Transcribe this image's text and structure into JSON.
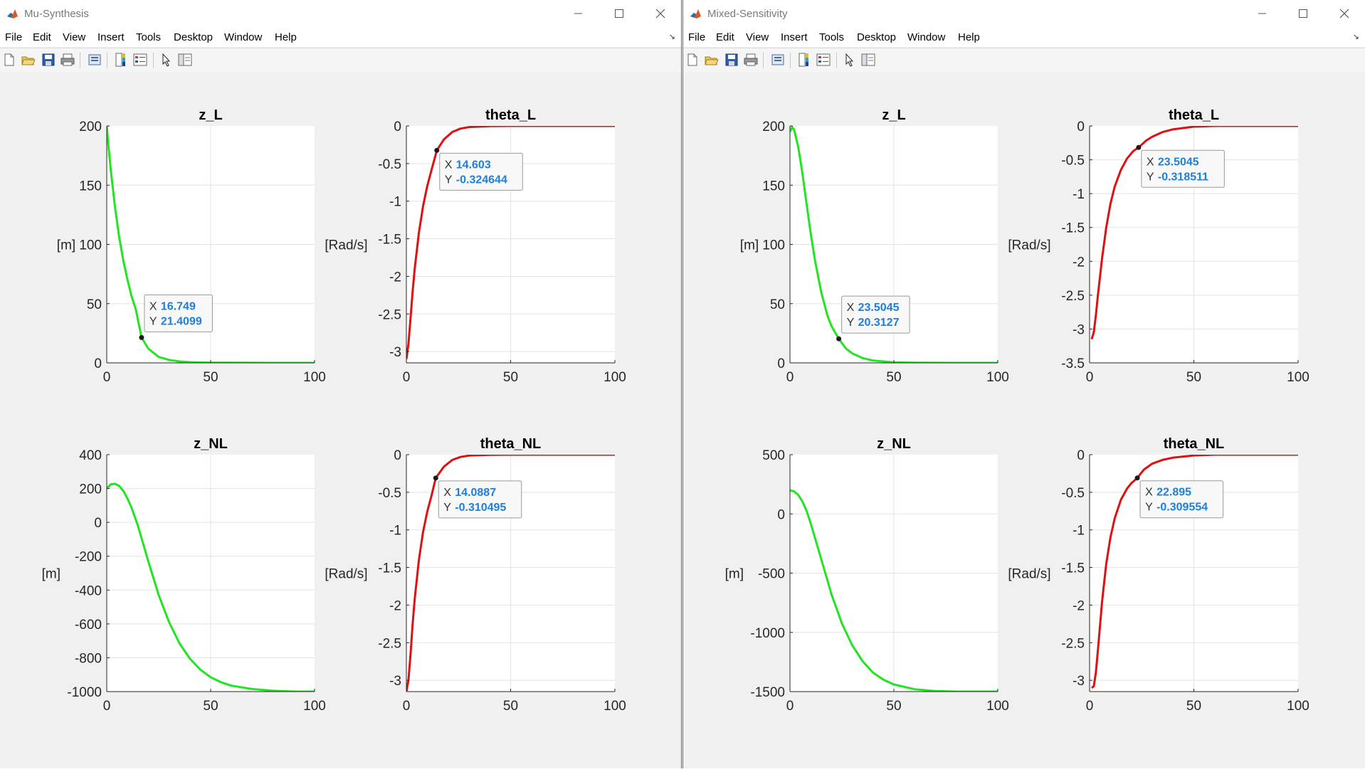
{
  "menu_items": [
    "File",
    "Edit",
    "View",
    "Insert",
    "Tools",
    "Desktop",
    "Window",
    "Help"
  ],
  "colors": {
    "green_line": "#22e522",
    "red_line": "#e01010",
    "datatip_value": "#1e7fd8",
    "figure_bg": "#f0f0f0"
  },
  "icons": [
    "new-figure-icon",
    "open-file-icon",
    "save-icon",
    "print-icon",
    "print-preview-icon",
    "colorbar-icon",
    "legend-icon",
    "pointer-icon",
    "property-editor-icon"
  ],
  "windows": [
    {
      "title": "Mu-Synthesis",
      "plots": [
        {
          "title": "z_L",
          "ylabel": "[m]",
          "datatip": {
            "x_label": "X",
            "x": "16.749",
            "y_label": "Y",
            "y": "21.4099"
          }
        },
        {
          "title": "theta_L",
          "ylabel": "[Rad/s]",
          "datatip": {
            "x_label": "X",
            "x": "14.603",
            "y_label": "Y",
            "y": "-0.324644"
          }
        },
        {
          "title": "z_NL",
          "ylabel": "[m]",
          "datatip": null
        },
        {
          "title": "theta_NL",
          "ylabel": "[Rad/s]",
          "datatip": {
            "x_label": "X",
            "x": "14.0887",
            "y_label": "Y",
            "y": "-0.310495"
          }
        }
      ]
    },
    {
      "title": "Mixed-Sensitivity",
      "plots": [
        {
          "title": "z_L",
          "ylabel": "[m]",
          "datatip": {
            "x_label": "X",
            "x": "23.5045",
            "y_label": "Y",
            "y": "20.3127"
          }
        },
        {
          "title": "theta_L",
          "ylabel": "[Rad/s]",
          "datatip": {
            "x_label": "X",
            "x": "23.5045",
            "y_label": "Y",
            "y": "-0.318511"
          }
        },
        {
          "title": "z_NL",
          "ylabel": "[m]",
          "datatip": null
        },
        {
          "title": "theta_NL",
          "ylabel": "[Rad/s]",
          "datatip": {
            "x_label": "X",
            "x": "22.895",
            "y_label": "Y",
            "y": "-0.309554"
          }
        }
      ]
    }
  ],
  "chart_data": [
    {
      "figure": "Mu-Synthesis",
      "title": "z_L",
      "type": "line",
      "xlabel": "",
      "ylabel": "[m]",
      "xlim": [
        0,
        100
      ],
      "ylim": [
        0,
        200
      ],
      "xticks": [
        0,
        50,
        100
      ],
      "yticks": [
        0,
        50,
        100,
        150,
        200
      ],
      "grid": true,
      "color": "#22e522",
      "series": [
        {
          "x": [
            0,
            1,
            2,
            4,
            6,
            8,
            10,
            12,
            14,
            16.749,
            20,
            25,
            30,
            35,
            40,
            50,
            60,
            80,
            100
          ],
          "y": [
            200,
            180,
            162,
            131,
            106,
            86,
            70,
            56,
            45,
            21.4099,
            12,
            5,
            2.5,
            1.2,
            0.6,
            0.2,
            0.1,
            0.02,
            0
          ]
        }
      ],
      "datatip": {
        "x": 16.749,
        "y": 21.4099
      }
    },
    {
      "figure": "Mu-Synthesis",
      "title": "theta_L",
      "type": "line",
      "xlabel": "",
      "ylabel": "[Rad/s]",
      "xlim": [
        0,
        100
      ],
      "ylim": [
        -3.15,
        0
      ],
      "xticks": [
        0,
        50,
        100
      ],
      "yticks": [
        0,
        -0.5,
        -1,
        -1.5,
        -2,
        -2.5,
        -3
      ],
      "grid": true,
      "color": "#e01010",
      "series": [
        {
          "x": [
            0,
            1,
            2,
            3,
            4,
            6,
            8,
            10,
            12,
            14.603,
            18,
            22,
            26,
            30,
            40,
            50,
            60,
            80,
            100
          ],
          "y": [
            -3.1,
            -2.9,
            -2.55,
            -2.2,
            -1.9,
            -1.42,
            -1.07,
            -0.8,
            -0.59,
            -0.324644,
            -0.18,
            -0.08,
            -0.035,
            -0.015,
            -0.003,
            0,
            0,
            0,
            0
          ]
        }
      ],
      "datatip": {
        "x": 14.603,
        "y": -0.324644
      }
    },
    {
      "figure": "Mu-Synthesis",
      "title": "z_NL",
      "type": "line",
      "xlabel": "",
      "ylabel": "[m]",
      "xlim": [
        0,
        100
      ],
      "ylim": [
        -1000,
        400
      ],
      "xticks": [
        0,
        50,
        100
      ],
      "yticks": [
        400,
        200,
        0,
        -200,
        -400,
        -600,
        -800,
        -1000
      ],
      "grid": true,
      "color": "#22e522",
      "series": [
        {
          "x": [
            0,
            2,
            4,
            6,
            8,
            10,
            12,
            15,
            20,
            25,
            30,
            35,
            40,
            45,
            50,
            55,
            60,
            70,
            80,
            90,
            100
          ],
          "y": [
            200,
            225,
            228,
            215,
            185,
            140,
            85,
            -20,
            -230,
            -430,
            -590,
            -715,
            -805,
            -870,
            -915,
            -945,
            -965,
            -985,
            -995,
            -1000,
            -1000
          ]
        }
      ],
      "datatip": null
    },
    {
      "figure": "Mu-Synthesis",
      "title": "theta_NL",
      "type": "line",
      "xlabel": "",
      "ylabel": "[Rad/s]",
      "xlim": [
        0,
        100
      ],
      "ylim": [
        -3.15,
        0
      ],
      "xticks": [
        0,
        50,
        100
      ],
      "yticks": [
        0,
        -0.5,
        -1,
        -1.5,
        -2,
        -2.5,
        -3
      ],
      "grid": true,
      "color": "#e01010",
      "series": [
        {
          "x": [
            0,
            1,
            2,
            3,
            4,
            6,
            8,
            10,
            12,
            14.0887,
            18,
            22,
            26,
            30,
            40,
            50,
            60,
            80,
            100
          ],
          "y": [
            -3.15,
            -3,
            -2.65,
            -2.25,
            -1.92,
            -1.4,
            -1.03,
            -0.76,
            -0.55,
            -0.310495,
            -0.16,
            -0.07,
            -0.03,
            -0.012,
            -0.002,
            0,
            0,
            0,
            0
          ]
        }
      ],
      "datatip": {
        "x": 14.0887,
        "y": -0.310495
      }
    },
    {
      "figure": "Mixed-Sensitivity",
      "title": "z_L",
      "type": "line",
      "xlabel": "",
      "ylabel": "[m]",
      "xlim": [
        0,
        100
      ],
      "ylim": [
        0,
        200
      ],
      "xticks": [
        0,
        50,
        100
      ],
      "yticks": [
        0,
        50,
        100,
        150,
        200
      ],
      "grid": true,
      "color": "#22e522",
      "series": [
        {
          "x": [
            0,
            1,
            2,
            4,
            6,
            8,
            10,
            12,
            15,
            18,
            20,
            23.5045,
            27,
            30,
            35,
            40,
            50,
            60,
            80,
            100
          ],
          "y": [
            195,
            199,
            197,
            182,
            160,
            134,
            109,
            87,
            60,
            40,
            31,
            20.3127,
            12,
            8,
            4,
            2,
            0.5,
            0.1,
            0,
            0
          ]
        }
      ],
      "datatip": {
        "x": 23.5045,
        "y": 20.3127
      }
    },
    {
      "figure": "Mixed-Sensitivity",
      "title": "theta_L",
      "type": "line",
      "xlabel": "",
      "ylabel": "[Rad/s]",
      "xlim": [
        0,
        100
      ],
      "ylim": [
        -3.5,
        0
      ],
      "xticks": [
        0,
        50,
        100
      ],
      "yticks": [
        0,
        -0.5,
        -1,
        -1.5,
        -2,
        -2.5,
        -3,
        -3.5
      ],
      "grid": true,
      "color": "#e01010",
      "series": [
        {
          "x": [
            1,
            2,
            3,
            4,
            6,
            8,
            10,
            12,
            15,
            18,
            21,
            23.5045,
            27,
            30,
            35,
            40,
            50,
            60,
            80,
            100
          ],
          "y": [
            -3.15,
            -3.05,
            -2.8,
            -2.5,
            -1.95,
            -1.5,
            -1.15,
            -0.9,
            -0.65,
            -0.48,
            -0.37,
            -0.318511,
            -0.22,
            -0.16,
            -0.09,
            -0.05,
            -0.01,
            0,
            0,
            0
          ]
        }
      ],
      "datatip": {
        "x": 23.5045,
        "y": -0.318511
      }
    },
    {
      "figure": "Mixed-Sensitivity",
      "title": "z_NL",
      "type": "line",
      "xlabel": "",
      "ylabel": "[m]",
      "xlim": [
        0,
        100
      ],
      "ylim": [
        -1500,
        500
      ],
      "xticks": [
        0,
        50,
        100
      ],
      "yticks": [
        500,
        0,
        -500,
        -1000,
        -1500
      ],
      "grid": true,
      "color": "#22e522",
      "series": [
        {
          "x": [
            0,
            2,
            4,
            6,
            8,
            10,
            12,
            15,
            18,
            20,
            25,
            30,
            35,
            40,
            45,
            50,
            60,
            70,
            80,
            100
          ],
          "y": [
            200,
            190,
            160,
            105,
            25,
            -80,
            -200,
            -380,
            -560,
            -680,
            -925,
            -1110,
            -1245,
            -1340,
            -1400,
            -1440,
            -1480,
            -1495,
            -1500,
            -1500
          ]
        }
      ],
      "datatip": null
    },
    {
      "figure": "Mixed-Sensitivity",
      "title": "theta_NL",
      "type": "line",
      "xlabel": "",
      "ylabel": "[Rad/s]",
      "xlim": [
        0,
        100
      ],
      "ylim": [
        -3.15,
        0
      ],
      "xticks": [
        0,
        50,
        100
      ],
      "yticks": [
        0,
        -0.5,
        -1,
        -1.5,
        -2,
        -2.5,
        -3
      ],
      "grid": true,
      "color": "#e01010",
      "series": [
        {
          "x": [
            1,
            2,
            3,
            4,
            6,
            8,
            10,
            12,
            15,
            18,
            20,
            22.895,
            26,
            30,
            35,
            40,
            50,
            60,
            80,
            100
          ],
          "y": [
            -3.1,
            -3.08,
            -2.9,
            -2.6,
            -1.95,
            -1.45,
            -1.1,
            -0.85,
            -0.6,
            -0.45,
            -0.38,
            -0.309554,
            -0.2,
            -0.12,
            -0.07,
            -0.04,
            -0.01,
            0,
            0,
            0
          ]
        }
      ],
      "datatip": {
        "x": 22.895,
        "y": -0.309554
      }
    }
  ]
}
